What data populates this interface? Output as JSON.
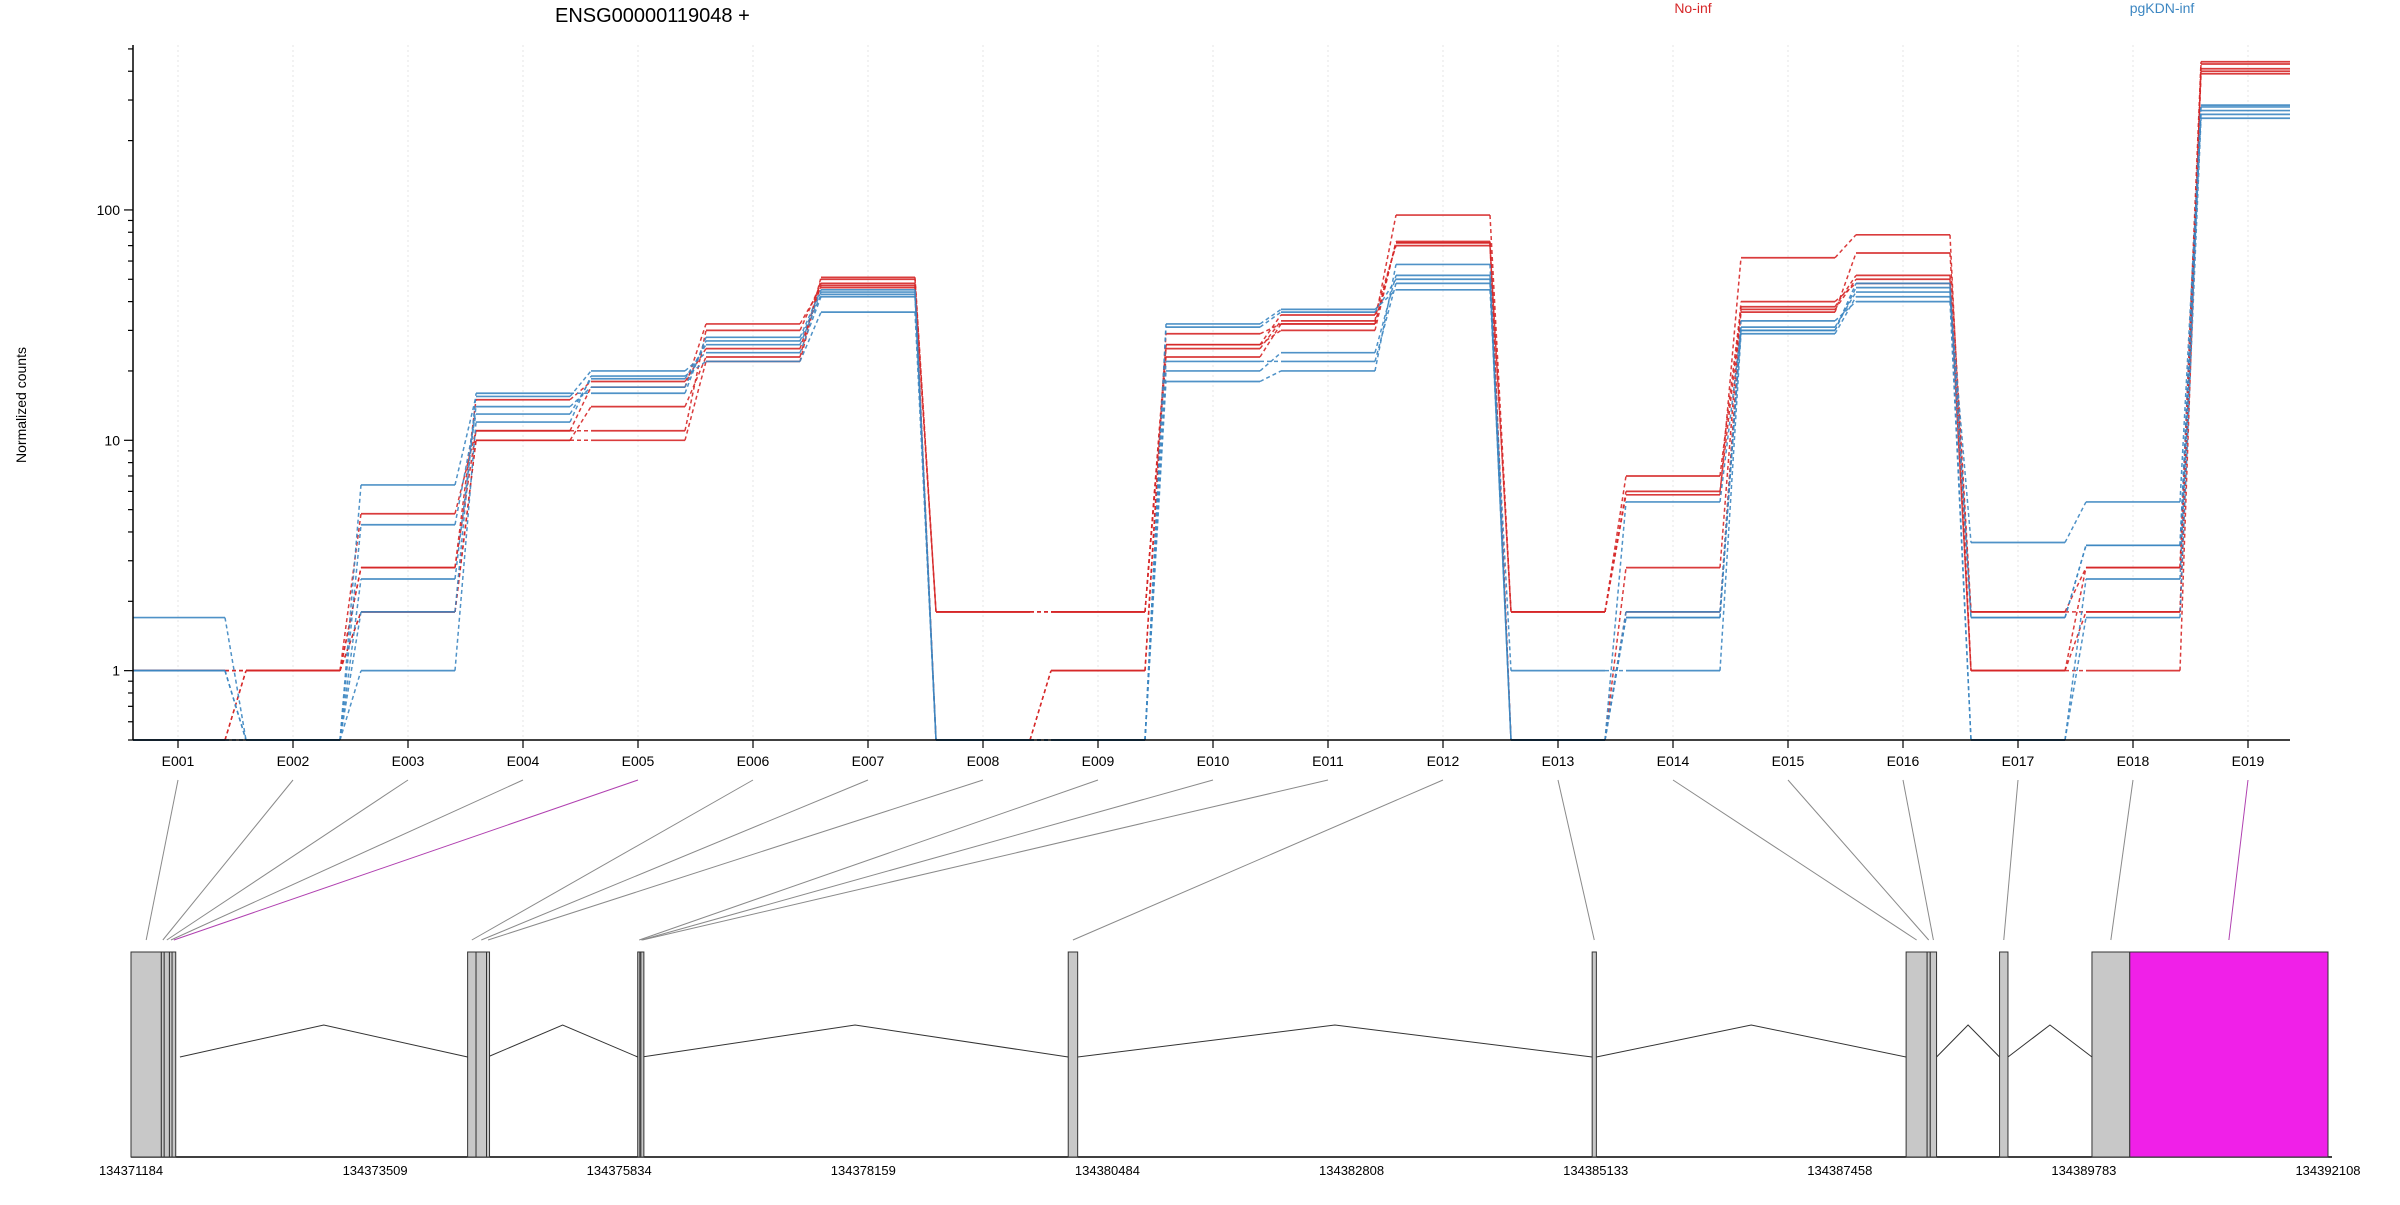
{
  "chart_data": {
    "type": "line",
    "title": "ENSG00000119048 +",
    "ylabel": "Normalized counts",
    "xlabel": "",
    "yscale": "log",
    "ylim": [
      0.5,
      520
    ],
    "yticks": [
      1,
      10,
      100
    ],
    "grid": "vertical",
    "legend_placement": "top",
    "categories": [
      "E001",
      "E002",
      "E003",
      "E004",
      "E005",
      "E006",
      "E007",
      "E008",
      "E009",
      "E010",
      "E011",
      "E012",
      "E013",
      "E014",
      "E015",
      "E016",
      "E017",
      "E018",
      "E019"
    ],
    "legend": [
      {
        "name": "No-inf",
        "color": "#d62728"
      },
      {
        "name": "pgKDN-inf",
        "color": "#3d87c2"
      }
    ],
    "series": [
      {
        "group": "No-inf",
        "values": [
          1,
          1,
          1.8,
          10,
          10,
          22,
          50,
          1.8,
          1.8,
          25,
          33,
          95,
          1.8,
          5.8,
          62,
          78,
          1,
          1,
          430
        ]
      },
      {
        "group": "No-inf",
        "values": [
          1,
          1,
          1.8,
          10,
          14,
          23,
          51,
          1.8,
          1.8,
          26,
          35,
          70,
          1.8,
          7,
          38,
          52,
          1.8,
          1.8,
          400
        ]
      },
      {
        "group": "No-inf",
        "values": [
          0.5,
          1,
          4.8,
          11,
          17,
          32,
          46,
          1.8,
          1.8,
          23,
          32,
          72,
          1.8,
          6,
          36,
          65,
          1.8,
          2.8,
          410
        ]
      },
      {
        "group": "No-inf",
        "values": [
          0.5,
          1,
          2.8,
          11,
          11,
          30,
          48,
          0.5,
          1,
          26,
          30,
          73,
          0.5,
          2.8,
          40,
          48,
          1,
          1.8,
          390
        ]
      },
      {
        "group": "No-inf",
        "values": [
          1,
          1,
          2.8,
          15,
          18,
          25,
          47,
          0.5,
          1,
          29,
          32,
          72,
          0.5,
          1.8,
          37,
          50,
          1,
          2.8,
          440
        ]
      },
      {
        "group": "pgKDN-inf",
        "values": [
          1.7,
          0.5,
          6.4,
          15.5,
          20,
          24,
          42,
          0.5,
          0.5,
          32,
          37,
          45,
          1,
          1,
          29,
          42,
          3.6,
          5.4,
          280
        ]
      },
      {
        "group": "pgKDN-inf",
        "values": [
          1,
          0.5,
          4.3,
          13,
          18.5,
          26,
          43,
          0.5,
          0.5,
          20,
          24,
          52,
          0.5,
          1.7,
          31,
          44,
          1.7,
          3.5,
          260
        ]
      },
      {
        "group": "pgKDN-inf",
        "values": [
          1,
          0.5,
          2.5,
          14,
          17,
          27,
          44,
          0.5,
          0.5,
          18,
          20,
          58,
          0.5,
          5.4,
          30,
          46,
          0.5,
          1.7,
          250
        ]
      },
      {
        "group": "pgKDN-inf",
        "values": [
          0.5,
          0.5,
          1,
          12,
          19,
          22,
          36,
          0.5,
          0.5,
          22,
          22,
          48,
          0.5,
          1.7,
          33,
          40,
          0.5,
          2.5,
          270
        ]
      },
      {
        "group": "pgKDN-inf",
        "values": [
          0.5,
          0.5,
          1.8,
          16,
          16,
          28,
          45,
          0.5,
          0.5,
          31,
          36,
          50,
          0.5,
          1.8,
          30,
          48,
          1.7,
          3.5,
          285
        ]
      }
    ],
    "gene_model": {
      "genomic_range": [
        134371184,
        134392108
      ],
      "tick_labels": [
        "134371184",
        "134373509",
        "134375834",
        "134378159",
        "134380484",
        "134382808",
        "134385133",
        "134387458",
        "134389783",
        "134392108"
      ],
      "exon_fill": "#c8c8c8",
      "highlight_fill": "#f020e8",
      "exons": [
        {
          "id": "E001",
          "start": 134371184,
          "end": 134371473,
          "highlight": false
        },
        {
          "id": "E002",
          "start": 134371473,
          "end": 134371500,
          "highlight": false
        },
        {
          "id": "E003",
          "start": 134371500,
          "end": 134371550,
          "highlight": false
        },
        {
          "id": "E004",
          "start": 134371550,
          "end": 134371575,
          "highlight": false
        },
        {
          "id": "E005",
          "start": 134371575,
          "end": 134371610,
          "highlight": true
        },
        {
          "id": "E006",
          "start": 134374390,
          "end": 134374470,
          "highlight": false
        },
        {
          "id": "E007",
          "start": 134374470,
          "end": 134374570,
          "highlight": false
        },
        {
          "id": "E008",
          "start": 134374570,
          "end": 134374580,
          "highlight": false
        },
        {
          "id": "E009",
          "start": 134376010,
          "end": 134376030,
          "highlight": false
        },
        {
          "id": "E010",
          "start": 134376030,
          "end": 134376040,
          "highlight": false
        },
        {
          "id": "E011",
          "start": 134376040,
          "end": 134376050,
          "highlight": false
        },
        {
          "id": "E012",
          "start": 134380110,
          "end": 134380200,
          "highlight": false
        },
        {
          "id": "E013",
          "start": 134385100,
          "end": 134385140,
          "highlight": false
        },
        {
          "id": "E014",
          "start": 134388090,
          "end": 134388290,
          "highlight": false
        },
        {
          "id": "E015",
          "start": 134388290,
          "end": 134388320,
          "highlight": false
        },
        {
          "id": "E016",
          "start": 134388320,
          "end": 134388380,
          "highlight": false
        },
        {
          "id": "E017",
          "start": 134388980,
          "end": 134389060,
          "highlight": false
        },
        {
          "id": "E018",
          "start": 134389860,
          "end": 134390220,
          "highlight": false
        },
        {
          "id": "E019",
          "start": 134390220,
          "end": 134392108,
          "highlight": true
        }
      ],
      "intron_paths": [
        [
          134371650,
          134374390
        ],
        [
          134374580,
          134376010
        ],
        [
          134376050,
          134380110
        ],
        [
          134380200,
          134385100
        ],
        [
          134385140,
          134388090
        ],
        [
          134388380,
          134388980
        ],
        [
          134389060,
          134389860
        ]
      ]
    }
  }
}
